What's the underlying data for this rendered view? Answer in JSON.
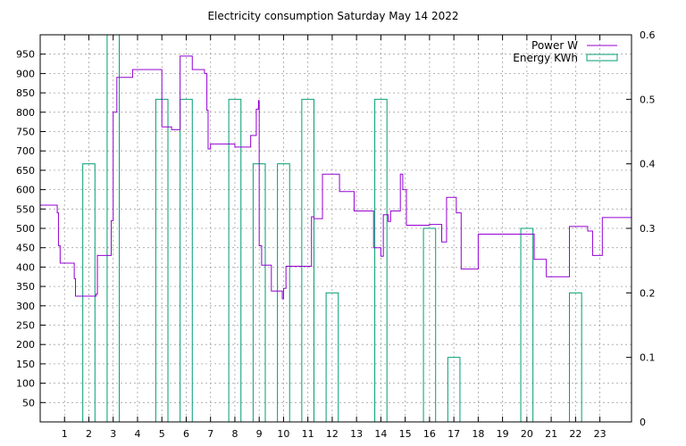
{
  "colors": {
    "power": "#9400d3",
    "energy": "#009e73",
    "grid": "#a0a0a0",
    "axis": "#000000",
    "background": "#ffffff"
  },
  "chart_data": {
    "type": "line",
    "title": "Electricity consumption Saturday May 14 2022",
    "xlabel": "",
    "ylabel": "",
    "y2label": "",
    "xlim": [
      0,
      24.3
    ],
    "ylim": [
      0,
      1000
    ],
    "y2lim": [
      0,
      0.6
    ],
    "grid": true,
    "legend_position": "top-right",
    "x_ticks": [
      1,
      2,
      3,
      4,
      5,
      6,
      7,
      8,
      9,
      10,
      11,
      12,
      13,
      14,
      15,
      16,
      17,
      18,
      19,
      20,
      21,
      22,
      23
    ],
    "x_tick_labels": [
      "1",
      "2",
      "3",
      "4",
      "5",
      "6",
      "7",
      "8",
      "9",
      "10",
      "11",
      "12",
      "13",
      "14",
      "15",
      "16",
      "17",
      "18",
      "19",
      "20",
      "21",
      "22",
      "23"
    ],
    "y_ticks": [
      50,
      100,
      150,
      200,
      250,
      300,
      350,
      400,
      450,
      500,
      550,
      600,
      650,
      700,
      750,
      800,
      850,
      900,
      950
    ],
    "y_tick_labels": [
      "50",
      "100",
      "150",
      "200",
      "250",
      "300",
      "350",
      "400",
      "450",
      "500",
      "550",
      "600",
      "650",
      "700",
      "750",
      "800",
      "850",
      "900",
      "950"
    ],
    "y2_ticks": [
      0,
      0.1,
      0.2,
      0.3,
      0.4,
      0.5,
      0.6
    ],
    "y2_tick_labels": [
      "0",
      "0.1",
      "0.2",
      "0.3",
      "0.4",
      "0.5",
      "0.6"
    ],
    "series": [
      {
        "name": "Power W",
        "axis": "y",
        "style": "steps",
        "x": [
          0,
          0.7,
          0.75,
          0.82,
          1.4,
          1.45,
          1.5,
          2.25,
          2.3,
          2.35,
          2.9,
          2.92,
          3.0,
          3.05,
          3.15,
          3.25,
          3.8,
          4.4,
          5.0,
          5.05,
          5.4,
          5.75,
          6.25,
          6.75,
          6.85,
          6.9,
          7.0,
          7.6,
          8.0,
          8.65,
          8.88,
          8.97,
          9.0,
          9.05,
          9.1,
          9.5,
          9.95,
          10.0,
          10.1,
          10.9,
          11.15,
          11.25,
          11.55,
          11.6,
          11.8,
          12.3,
          12.4,
          12.9,
          13.7,
          14.0,
          14.1,
          14.3,
          14.4,
          14.8,
          14.9,
          15.05,
          16.0,
          16.5,
          16.7,
          17.0,
          17.1,
          17.3,
          18.0,
          19.7,
          20.3,
          20.8,
          21.75,
          22.5,
          22.7,
          23.1,
          24.3
        ],
        "values": [
          560,
          540,
          455,
          410,
          370,
          325,
          325,
          325,
          330,
          430,
          430,
          520,
          800,
          800,
          890,
          890,
          910,
          910,
          762,
          762,
          755,
          945,
          910,
          900,
          805,
          705,
          718,
          718,
          710,
          740,
          808,
          830,
          455,
          455,
          405,
          338,
          318,
          345,
          402,
          402,
          530,
          525,
          525,
          640,
          640,
          595,
          595,
          545,
          450,
          428,
          535,
          518,
          545,
          640,
          600,
          508,
          510,
          465,
          580,
          580,
          540,
          395,
          485,
          485,
          420,
          375,
          505,
          493,
          430,
          528,
          520
        ]
      },
      {
        "name": "Energy KWh",
        "axis": "y2",
        "style": "boxes",
        "x": [
          2,
          3,
          5,
          6,
          8,
          9,
          10,
          11,
          12,
          14,
          16,
          17,
          20,
          22
        ],
        "values": [
          0.4,
          0.6,
          0.5,
          0.5,
          0.5,
          0.4,
          0.4,
          0.5,
          0.2,
          0.5,
          0.3,
          0.1,
          0.3,
          0.2
        ]
      }
    ]
  }
}
